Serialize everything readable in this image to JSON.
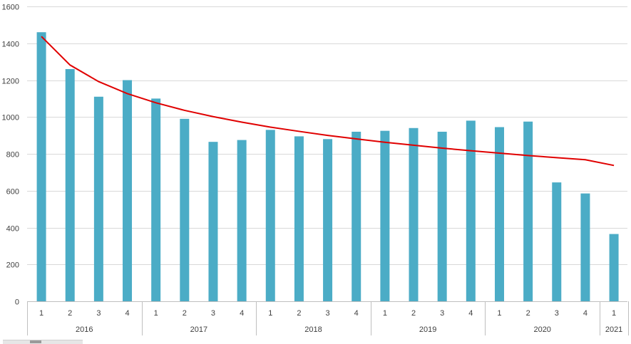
{
  "chart_data": {
    "type": "bar",
    "ylim": [
      0,
      1600
    ],
    "yticks": [
      0,
      200,
      400,
      600,
      800,
      1000,
      1200,
      1400,
      1600
    ],
    "grid": true,
    "groups": [
      {
        "label": "2016",
        "quarters": [
          "1",
          "2",
          "3",
          "4"
        ]
      },
      {
        "label": "2017",
        "quarters": [
          "1",
          "2",
          "3",
          "4"
        ]
      },
      {
        "label": "2018",
        "quarters": [
          "1",
          "2",
          "3",
          "4"
        ]
      },
      {
        "label": "2019",
        "quarters": [
          "1",
          "2",
          "3",
          "4"
        ]
      },
      {
        "label": "2020",
        "quarters": [
          "1",
          "2",
          "3",
          "4"
        ]
      },
      {
        "label": "2021",
        "quarters": [
          "1"
        ]
      }
    ],
    "series": [
      {
        "type": "bar",
        "color": "#4bacc6",
        "values": [
          1460,
          1260,
          1110,
          1200,
          1100,
          990,
          865,
          875,
          930,
          895,
          880,
          920,
          925,
          940,
          920,
          980,
          945,
          975,
          645,
          585,
          365
        ]
      },
      {
        "type": "line",
        "trendline": "logarithmic",
        "color": "#e00000",
        "values": [
          1437,
          1282,
          1192,
          1127,
          1077,
          1036,
          1002,
          972,
          945,
          922,
          900,
          881,
          863,
          847,
          831,
          817,
          804,
          791,
          779,
          768,
          737
        ]
      }
    ]
  }
}
